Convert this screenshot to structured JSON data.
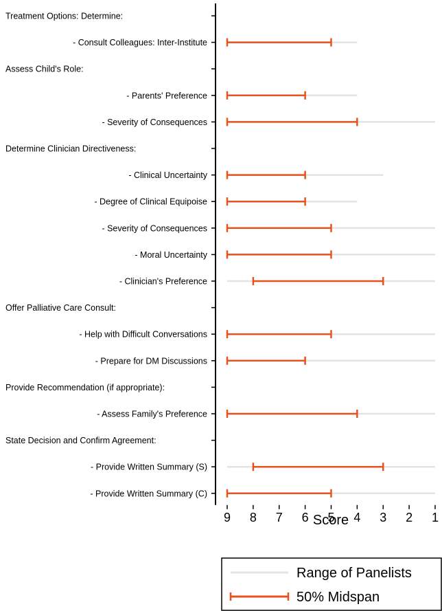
{
  "chart_data": {
    "type": "range-interval",
    "orientation": "horizontal",
    "xlabel": "Score",
    "xlim": [
      9,
      1
    ],
    "x_reversed": true,
    "x_ticks": [
      9,
      8,
      7,
      6,
      5,
      4,
      3,
      2,
      1
    ],
    "grid": false,
    "legend_position": "bottom-right",
    "legend": [
      {
        "key": "range",
        "label": "Range of Panelists",
        "color": "#e3e3e3"
      },
      {
        "key": "midspan",
        "label": "50% Midspan",
        "color": "#e8521e"
      }
    ],
    "categories": [
      {
        "label": "Treatment Options: Determine:",
        "is_header": true
      },
      {
        "label": "- Consult Colleagues: Inter-Institute",
        "range": [
          9,
          4
        ],
        "midspan": [
          9,
          5
        ]
      },
      {
        "label": "Assess Child's Role:",
        "is_header": true
      },
      {
        "label": "- Parents' Preference",
        "range": [
          9,
          4
        ],
        "midspan": [
          9,
          6
        ]
      },
      {
        "label": "- Severity of Consequences",
        "range": [
          9,
          1
        ],
        "midspan": [
          9,
          4
        ]
      },
      {
        "label": "Determine Clinician Directiveness:",
        "is_header": true
      },
      {
        "label": "- Clinical Uncertainty",
        "range": [
          9,
          3
        ],
        "midspan": [
          9,
          6
        ]
      },
      {
        "label": "- Degree of Clinical Equipoise",
        "range": [
          9,
          4
        ],
        "midspan": [
          9,
          6
        ]
      },
      {
        "label": "- Severity of Consequences",
        "range": [
          9,
          1
        ],
        "midspan": [
          9,
          5
        ]
      },
      {
        "label": "- Moral Uncertainty",
        "range": [
          9,
          1
        ],
        "midspan": [
          9,
          5
        ]
      },
      {
        "label": "- Clinician's Preference",
        "range": [
          9,
          1
        ],
        "midspan": [
          8,
          3
        ]
      },
      {
        "label": "Offer Palliative Care Consult:",
        "is_header": true
      },
      {
        "label": "- Help with Difficult Conversations",
        "range": [
          9,
          1
        ],
        "midspan": [
          9,
          5
        ]
      },
      {
        "label": "- Prepare for DM Discussions",
        "range": [
          9,
          1
        ],
        "midspan": [
          9,
          6
        ]
      },
      {
        "label": "Provide Recommendation (if appropriate):",
        "is_header": true
      },
      {
        "label": "- Assess Family's Preference",
        "range": [
          9,
          1
        ],
        "midspan": [
          9,
          4
        ]
      },
      {
        "label": "State Decision and Confirm Agreement:",
        "is_header": true
      },
      {
        "label": "- Provide Written Summary (S)",
        "range": [
          9,
          1
        ],
        "midspan": [
          8,
          3
        ]
      },
      {
        "label": "- Provide Written Summary (C)",
        "range": [
          9,
          1
        ],
        "midspan": [
          9,
          5
        ]
      }
    ]
  }
}
